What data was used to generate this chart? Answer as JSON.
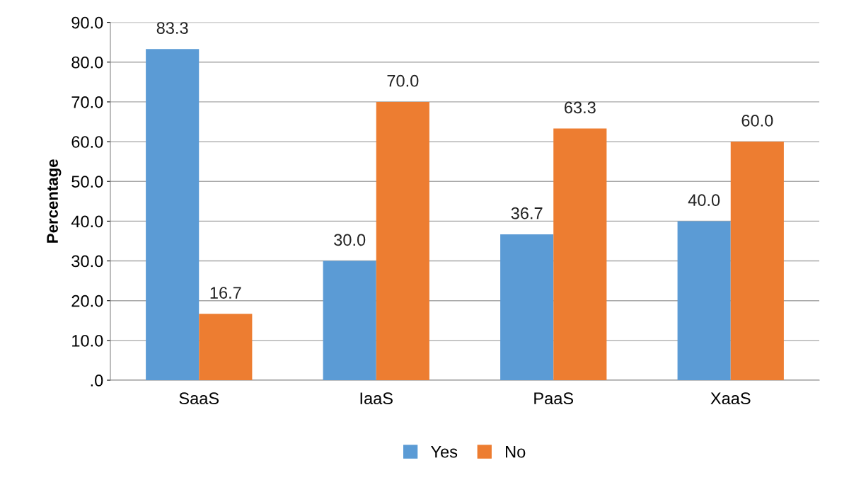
{
  "chart_data": {
    "type": "bar",
    "ylabel": "Percentage",
    "categories": [
      "SaaS",
      "IaaS",
      "PaaS",
      "XaaS"
    ],
    "series": [
      {
        "name": "Yes",
        "color": "#5b9bd5",
        "values": [
          83.3,
          30.0,
          36.7,
          40.0
        ],
        "value_labels": [
          "83.3",
          "30.0",
          "36.7",
          "40.0"
        ]
      },
      {
        "name": "No",
        "color": "#ed7d31",
        "values": [
          16.7,
          70.0,
          63.3,
          60.0
        ],
        "value_labels": [
          "16.7",
          "70.0",
          "63.3",
          "60.0"
        ]
      }
    ],
    "ylim": [
      0,
      90
    ],
    "yticks": [
      {
        "value": 0,
        "label": ".0"
      },
      {
        "value": 10,
        "label": "10.0"
      },
      {
        "value": 20,
        "label": "20.0"
      },
      {
        "value": 30,
        "label": "30.0"
      },
      {
        "value": 40,
        "label": "40.0"
      },
      {
        "value": 50,
        "label": "50.0"
      },
      {
        "value": 60,
        "label": "60.0"
      },
      {
        "value": 70,
        "label": "70.0"
      },
      {
        "value": 80,
        "label": "80.0"
      },
      {
        "value": 90,
        "label": "90.0"
      }
    ],
    "grid": "y",
    "legend": "bottom"
  }
}
